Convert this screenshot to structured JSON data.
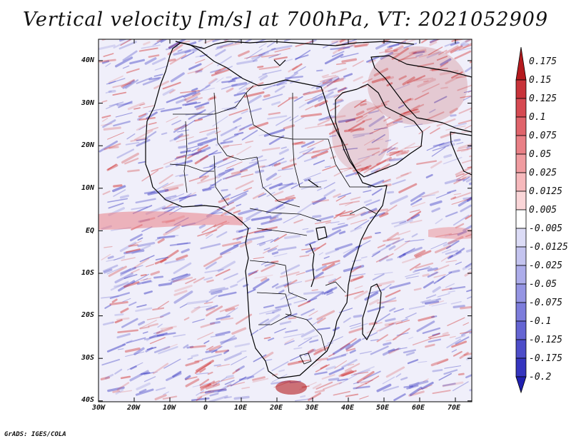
{
  "title": "Vertical velocity [m/s] at 700hPa, VT: 2021052909",
  "credit": "GrADS: IGES/COLA",
  "map": {
    "lat_labels": [
      "40N",
      "30N",
      "20N",
      "10N",
      "EQ",
      "10S",
      "20S",
      "30S",
      "40S"
    ],
    "lon_labels": [
      "30W",
      "20W",
      "10W",
      "0",
      "10E",
      "20E",
      "30E",
      "40E",
      "50E",
      "60E",
      "70E"
    ]
  },
  "colorbar": {
    "labels": [
      "0.175",
      "0.15",
      "0.125",
      "0.1",
      "0.075",
      "0.05",
      "0.025",
      "0.0125",
      "0.005",
      "-0.005",
      "-0.0125",
      "-0.025",
      "-0.05",
      "-0.075",
      "-0.1",
      "-0.125",
      "-0.175",
      "-0.2"
    ],
    "colors": [
      "#b41a1e",
      "#c8333a",
      "#d64a52",
      "#e0646b",
      "#e98086",
      "#f09ca0",
      "#f6b9bc",
      "#fad6d8",
      "#ffffff",
      "#dcdcf6",
      "#c4c4ef",
      "#adadea",
      "#9595e3",
      "#7d7ddc",
      "#6565d3",
      "#4d4dc9",
      "#3535bf",
      "#2020b0"
    ]
  },
  "colors": {
    "positive": "#d03030",
    "negative": "#3535c0",
    "coast": "#000000"
  }
}
